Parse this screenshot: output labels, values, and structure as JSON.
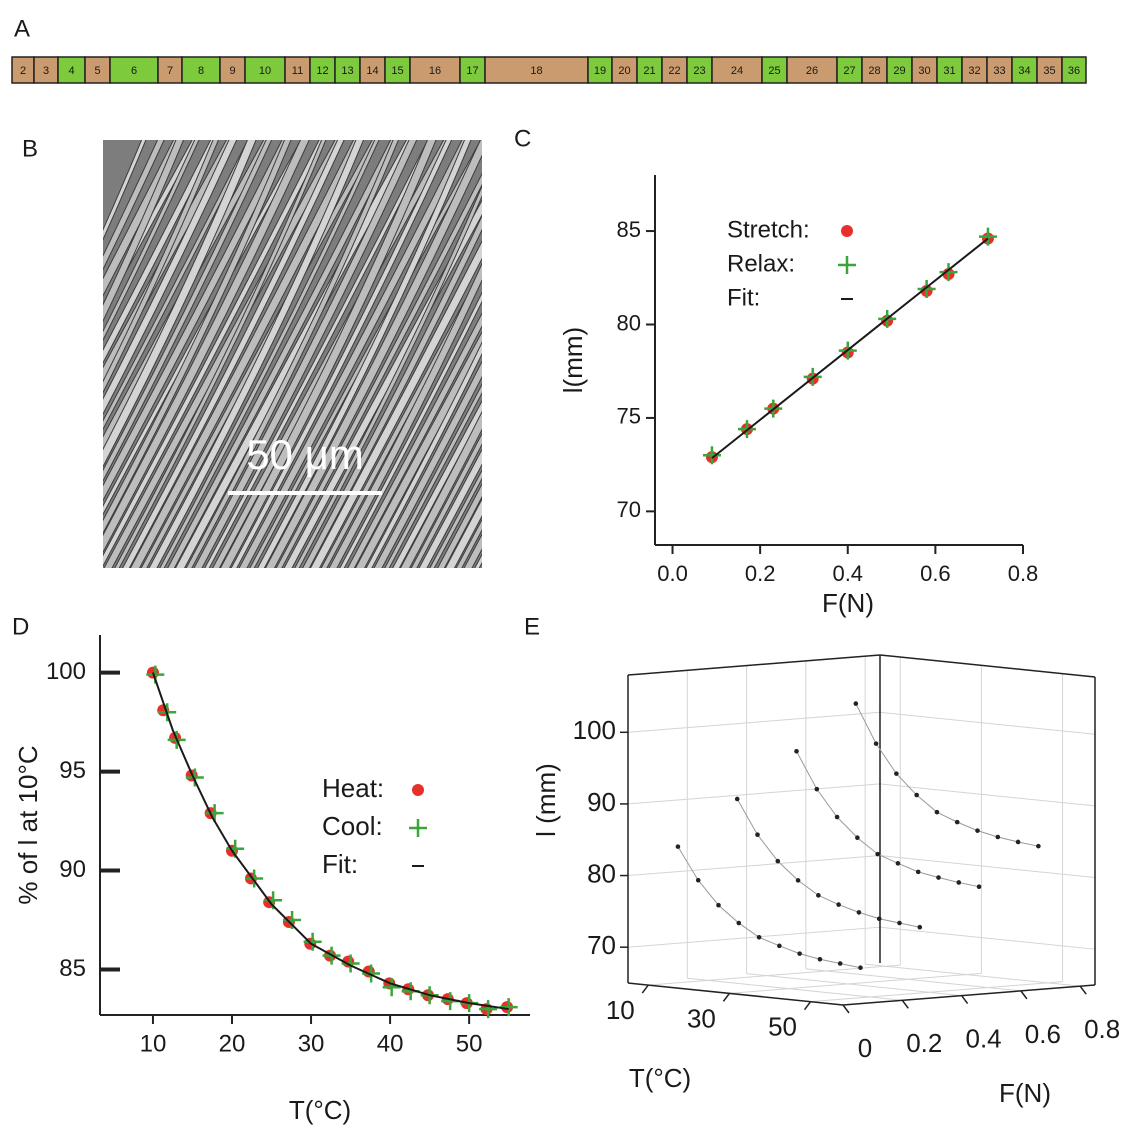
{
  "figure": {
    "panel_labels": [
      "A",
      "B",
      "C",
      "D",
      "E"
    ]
  },
  "strip": {
    "segments": [
      {
        "label": 2,
        "color": "#c99b6e"
      },
      {
        "label": 3,
        "color": "#c99b6e"
      },
      {
        "label": 4,
        "color": "#7dcb3c"
      },
      {
        "label": 5,
        "color": "#c99b6e"
      },
      {
        "label": 6,
        "color": "#7dcb3c"
      },
      {
        "label": 7,
        "color": "#c99b6e"
      },
      {
        "label": 8,
        "color": "#7dcb3c"
      },
      {
        "label": 9,
        "color": "#c99b6e"
      },
      {
        "label": 10,
        "color": "#7dcb3c"
      },
      {
        "label": 11,
        "color": "#c99b6e"
      },
      {
        "label": 12,
        "color": "#7dcb3c"
      },
      {
        "label": 13,
        "color": "#7dcb3c"
      },
      {
        "label": 14,
        "color": "#c99b6e"
      },
      {
        "label": 15,
        "color": "#7dcb3c"
      },
      {
        "label": 16,
        "color": "#c99b6e"
      },
      {
        "label": 17,
        "color": "#7dcb3c"
      },
      {
        "label": 18,
        "color": "#c99b6e"
      },
      {
        "label": 19,
        "color": "#7dcb3c"
      },
      {
        "label": 20,
        "color": "#c99b6e"
      },
      {
        "label": 21,
        "color": "#7dcb3c"
      },
      {
        "label": 22,
        "color": "#c99b6e"
      },
      {
        "label": 23,
        "color": "#7dcb3c"
      },
      {
        "label": 24,
        "color": "#c99b6e"
      },
      {
        "label": 25,
        "color": "#7dcb3c"
      },
      {
        "label": 26,
        "color": "#c99b6e"
      },
      {
        "label": 27,
        "color": "#7dcb3c"
      },
      {
        "label": 28,
        "color": "#c99b6e"
      },
      {
        "label": 29,
        "color": "#7dcb3c"
      },
      {
        "label": 30,
        "color": "#c99b6e"
      },
      {
        "label": 31,
        "color": "#7dcb3c"
      },
      {
        "label": 32,
        "color": "#c99b6e"
      },
      {
        "label": 33,
        "color": "#c99b6e"
      },
      {
        "label": 34,
        "color": "#7dcb3c"
      },
      {
        "label": 35,
        "color": "#c99b6e"
      },
      {
        "label": 36,
        "color": "#7dcb3c"
      }
    ]
  },
  "image": {
    "scale_bar": "50 μm"
  },
  "chart_data": [
    {
      "type": "scatter",
      "xlabel": "F(N)",
      "ylabel": "l(mm)",
      "xlim": [
        -0.04,
        0.8
      ],
      "xticks": [
        {
          "value": 0,
          "label": "0.0"
        },
        0.2,
        0.4,
        0.6,
        0.8
      ],
      "ylim": [
        68.2,
        88
      ],
      "yticks": [
        70,
        75,
        80,
        85
      ],
      "legend": "upper left",
      "series": [
        {
          "name": "Stretch:",
          "color": "#e8302a",
          "marker": "circle",
          "x": [
            0.09,
            0.17,
            0.23,
            0.32,
            0.4,
            0.49,
            0.58,
            0.63,
            0.72
          ],
          "values": [
            72.9,
            74.4,
            75.5,
            77.1,
            78.5,
            80.2,
            81.8,
            82.7,
            84.6
          ]
        },
        {
          "name": "Relax:",
          "color": "#3aa53a",
          "marker": "plus",
          "x": [
            0.09,
            0.17,
            0.23,
            0.32,
            0.4,
            0.49,
            0.58,
            0.63,
            0.72
          ],
          "values": [
            73.0,
            74.4,
            75.5,
            77.2,
            78.6,
            80.3,
            81.9,
            82.8,
            84.7
          ]
        },
        {
          "name": "Fit:",
          "color": "#1a1a1a",
          "marker": "line",
          "x": [
            0.09,
            0.72
          ],
          "values": [
            72.85,
            84.6
          ]
        }
      ]
    },
    {
      "type": "scatter",
      "xlabel": "T(°C)",
      "ylabel": "% of l at 10°C",
      "xlim": [
        3.3,
        57.7
      ],
      "xticks": [
        10,
        20,
        30,
        40,
        50
      ],
      "ylim": [
        82.7,
        101.9
      ],
      "yticks": [
        85,
        90,
        95,
        100
      ],
      "legend": "center right",
      "series": [
        {
          "name": "Heat:",
          "color": "#e8302a",
          "marker": "circle",
          "x": [
            10,
            11.3,
            12.8,
            14.9,
            17.3,
            20,
            22.4,
            24.7,
            27.2,
            29.9,
            32.4,
            34.7,
            37.3,
            39.9,
            42.3,
            44.8,
            47.3,
            49.7,
            52.2,
            54.8
          ],
          "values": [
            100,
            98.1,
            96.7,
            94.8,
            92.9,
            91.0,
            89.6,
            88.4,
            87.4,
            86.3,
            85.7,
            85.4,
            84.9,
            84.3,
            84.0,
            83.7,
            83.5,
            83.3,
            83.0,
            83.1
          ]
        },
        {
          "name": "Cool:",
          "color": "#3aa53a",
          "marker": "plus",
          "x": [
            10.3,
            11.8,
            13,
            15.3,
            17.8,
            20.4,
            22.8,
            25.2,
            27.6,
            30.2,
            32.6,
            35,
            37.6,
            40.2,
            42.6,
            45,
            47.6,
            50,
            52.4,
            55
          ],
          "values": [
            99.9,
            98.0,
            96.6,
            94.7,
            92.9,
            91.1,
            89.6,
            88.5,
            87.5,
            86.4,
            85.7,
            85.3,
            84.8,
            84.1,
            83.9,
            83.7,
            83.4,
            83.3,
            83.0,
            83.1
          ]
        },
        {
          "name": "Fit:",
          "color": "#1a1a1a",
          "marker": "line",
          "x": [
            10,
            12.5,
            15,
            17.5,
            20,
            25,
            30,
            35,
            40,
            45,
            50,
            55
          ],
          "values": [
            100,
            97.1,
            94.8,
            92.7,
            91.0,
            88.3,
            86.3,
            85.2,
            84.3,
            83.7,
            83.3,
            83.0
          ]
        }
      ]
    },
    {
      "type": "scatter3d",
      "xlabel": "F(N)",
      "ylabel": "T(°C)",
      "zlabel": "l (mm)",
      "xlim": [
        0,
        0.85
      ],
      "xticks": [
        0,
        0.2,
        0.4,
        0.6,
        0.8
      ],
      "ylim": [
        5,
        58
      ],
      "yticks": [
        10,
        30,
        50
      ],
      "zlim": [
        65,
        108
      ],
      "zticks": [
        70,
        80,
        90,
        100
      ],
      "grid": true,
      "series": [
        {
          "F": 0.1,
          "color": "#222222",
          "x": [
            10,
            15,
            20,
            25,
            30,
            35,
            40,
            45,
            50,
            55
          ],
          "values": [
            84,
            79.6,
            76.4,
            74.2,
            72.5,
            71.6,
            70.8,
            70.3,
            70.0,
            69.7
          ]
        },
        {
          "F": 0.3,
          "color": "#222222",
          "x": [
            10,
            15,
            20,
            25,
            30,
            35,
            40,
            45,
            50,
            55
          ],
          "values": [
            90,
            85.3,
            81.9,
            79.5,
            77.7,
            76.7,
            75.9,
            75.3,
            75.0,
            74.7
          ]
        },
        {
          "F": 0.5,
          "color": "#222222",
          "x": [
            10,
            15,
            20,
            25,
            30,
            35,
            40,
            45,
            50,
            55
          ],
          "values": [
            96,
            91.0,
            87.4,
            84.8,
            82.8,
            81.8,
            80.9,
            80.4,
            80.0,
            79.7
          ]
        },
        {
          "F": 0.7,
          "color": "#222222",
          "x": [
            10,
            15,
            20,
            25,
            30,
            35,
            40,
            45,
            50,
            55
          ],
          "values": [
            102,
            96.7,
            92.8,
            90.1,
            88.0,
            86.9,
            86.0,
            85.4,
            85.0,
            84.7
          ]
        }
      ]
    }
  ]
}
